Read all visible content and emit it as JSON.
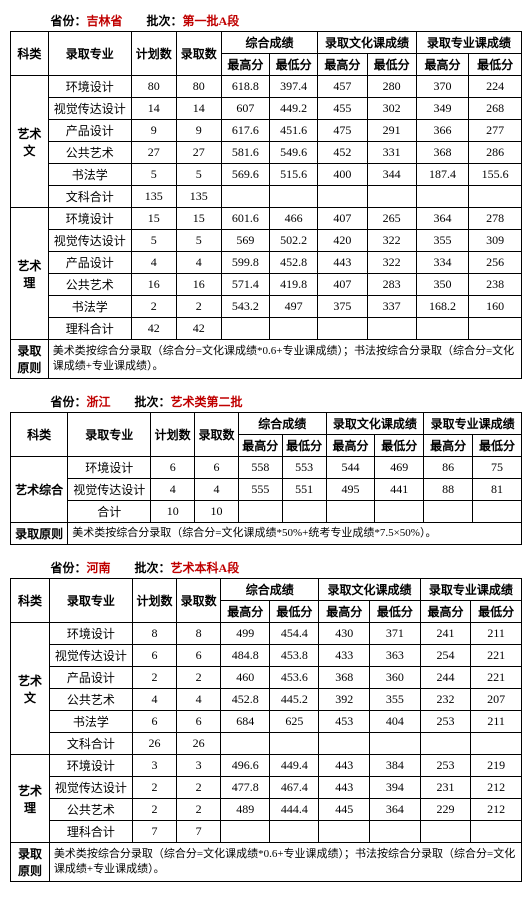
{
  "labels": {
    "province": "省份：",
    "batch": "批次：",
    "kelei": "科类",
    "major": "录取专业",
    "plan": "计划数",
    "enroll": "录取数",
    "comp": "综合成绩",
    "culture": "录取文化课成绩",
    "prof": "录取专业课成绩",
    "max": "最高分",
    "min": "最低分",
    "rule": "录取原则"
  },
  "tables": [
    {
      "province": "吉林省",
      "batch": "第一批A段",
      "groups": [
        {
          "cat": "艺术文",
          "rows": [
            [
              "环境设计",
              "80",
              "80",
              "618.8",
              "397.4",
              "457",
              "280",
              "370",
              "224"
            ],
            [
              "视觉传达设计",
              "14",
              "14",
              "607",
              "449.2",
              "455",
              "302",
              "349",
              "268"
            ],
            [
              "产品设计",
              "9",
              "9",
              "617.6",
              "451.6",
              "475",
              "291",
              "366",
              "277"
            ],
            [
              "公共艺术",
              "27",
              "27",
              "581.6",
              "549.6",
              "452",
              "331",
              "368",
              "286"
            ],
            [
              "书法学",
              "5",
              "5",
              "569.6",
              "515.6",
              "400",
              "344",
              "187.4",
              "155.6"
            ],
            [
              "文科合计",
              "135",
              "135",
              "",
              "",
              "",
              "",
              "",
              ""
            ]
          ]
        },
        {
          "cat": "艺术理",
          "rows": [
            [
              "环境设计",
              "15",
              "15",
              "601.6",
              "466",
              "407",
              "265",
              "364",
              "278"
            ],
            [
              "视觉传达设计",
              "5",
              "5",
              "569",
              "502.2",
              "420",
              "322",
              "355",
              "309"
            ],
            [
              "产品设计",
              "4",
              "4",
              "599.8",
              "452.8",
              "443",
              "322",
              "334",
              "256"
            ],
            [
              "公共艺术",
              "16",
              "16",
              "571.4",
              "419.8",
              "407",
              "283",
              "350",
              "238"
            ],
            [
              "书法学",
              "2",
              "2",
              "543.2",
              "497",
              "375",
              "337",
              "168.2",
              "160"
            ],
            [
              "理科合计",
              "42",
              "42",
              "",
              "",
              "",
              "",
              "",
              ""
            ]
          ]
        }
      ],
      "note": "美术类按综合分录取（综合分=文化课成绩*0.6+专业课成绩）；书法按综合分录取（综合分=文化课成绩+专业课成绩）。"
    },
    {
      "province": "浙江",
      "batch": "艺术类第二批",
      "groups": [
        {
          "cat": "艺术综合",
          "rows": [
            [
              "环境设计",
              "6",
              "6",
              "558",
              "553",
              "544",
              "469",
              "86",
              "75"
            ],
            [
              "视觉传达设计",
              "4",
              "4",
              "555",
              "551",
              "495",
              "441",
              "88",
              "81"
            ],
            [
              "合计",
              "10",
              "10",
              "",
              "",
              "",
              "",
              "",
              ""
            ]
          ]
        }
      ],
      "note": "美术类按综合分录取（综合分=文化课成绩*50%+统考专业成绩*7.5×50%）。"
    },
    {
      "province": "河南",
      "batch": "艺术本科A段",
      "groups": [
        {
          "cat": "艺术文",
          "rows": [
            [
              "环境设计",
              "8",
              "8",
              "499",
              "454.4",
              "430",
              "371",
              "241",
              "211"
            ],
            [
              "视觉传达设计",
              "6",
              "6",
              "484.8",
              "453.8",
              "433",
              "363",
              "254",
              "221"
            ],
            [
              "产品设计",
              "2",
              "2",
              "460",
              "453.6",
              "368",
              "360",
              "244",
              "221"
            ],
            [
              "公共艺术",
              "4",
              "4",
              "452.8",
              "445.2",
              "392",
              "355",
              "232",
              "207"
            ],
            [
              "书法学",
              "6",
              "6",
              "684",
              "625",
              "453",
              "404",
              "253",
              "211"
            ],
            [
              "文科合计",
              "26",
              "26",
              "",
              "",
              "",
              "",
              "",
              ""
            ]
          ]
        },
        {
          "cat": "艺术理",
          "rows": [
            [
              "环境设计",
              "3",
              "3",
              "496.6",
              "449.4",
              "443",
              "384",
              "253",
              "219"
            ],
            [
              "视觉传达设计",
              "2",
              "2",
              "477.8",
              "467.4",
              "443",
              "394",
              "231",
              "212"
            ],
            [
              "公共艺术",
              "2",
              "2",
              "489",
              "444.4",
              "445",
              "364",
              "229",
              "212"
            ],
            [
              "理科合计",
              "7",
              "7",
              "",
              "",
              "",
              "",
              "",
              ""
            ]
          ]
        }
      ],
      "note": "美术类按综合分录取（综合分=文化课成绩*0.6+专业课成绩）；书法按综合分录取（综合分=文化课成绩+专业课成绩）。"
    }
  ]
}
